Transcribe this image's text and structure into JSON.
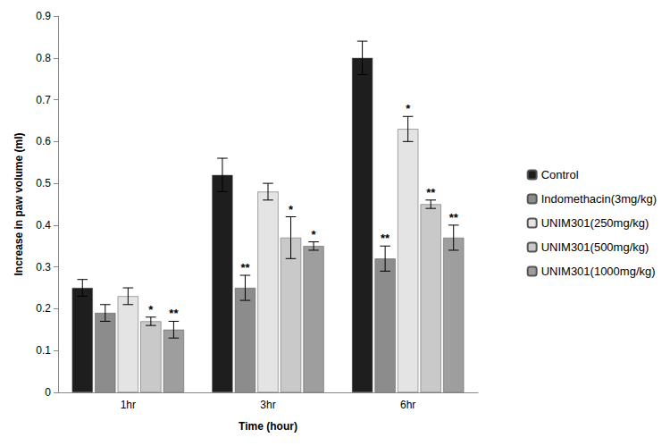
{
  "chart_data": {
    "type": "bar",
    "x_label": "Time (hour)",
    "y_label": "Increase in paw volume (ml)",
    "categories": [
      "1hr",
      "3hr",
      "6hr"
    ],
    "ylim": [
      0,
      0.9
    ],
    "yticks": [
      0,
      0.1,
      0.2,
      0.3,
      0.4,
      0.5,
      0.6,
      0.7,
      0.8,
      0.9
    ],
    "grid": false,
    "legend": "right",
    "series": [
      {
        "name": "Control",
        "color": "#1e1e1e",
        "values": [
          0.25,
          0.52,
          0.8
        ],
        "errors": [
          0.02,
          0.04,
          0.04
        ],
        "significance": [
          null,
          null,
          null
        ]
      },
      {
        "name": "Indomethacin(3mg/kg)",
        "color": "#8c8c8c",
        "values": [
          0.19,
          0.25,
          0.32
        ],
        "errors": [
          0.02,
          0.03,
          0.03
        ],
        "significance": [
          null,
          "**",
          "**"
        ]
      },
      {
        "name": "UNIM301(250mg/kg)",
        "color": "#e4e4e4",
        "values": [
          0.23,
          0.48,
          0.63
        ],
        "errors": [
          0.02,
          0.02,
          0.03
        ],
        "significance": [
          null,
          null,
          "*"
        ]
      },
      {
        "name": "UNIM301(500mg/kg)",
        "color": "#c9c9c9",
        "values": [
          0.17,
          0.37,
          0.45
        ],
        "errors": [
          0.01,
          0.05,
          0.01
        ],
        "significance": [
          "*",
          "*",
          "**"
        ]
      },
      {
        "name": "UNIM301(1000mg/kg)",
        "color": "#9e9e9e",
        "values": [
          0.15,
          0.35,
          0.37
        ],
        "errors": [
          0.02,
          0.01,
          0.03
        ],
        "significance": [
          "**",
          "*",
          "**"
        ]
      }
    ]
  }
}
